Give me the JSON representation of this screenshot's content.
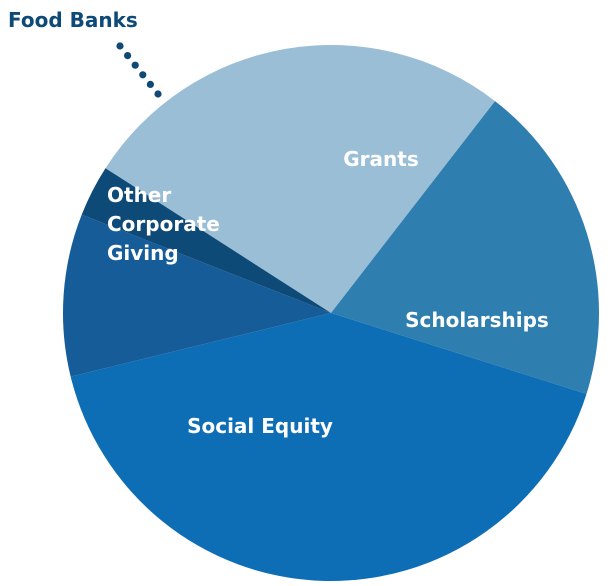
{
  "chart_data": {
    "type": "pie",
    "title": "",
    "categories": [
      "Grants",
      "Scholarships",
      "Social Equity",
      "Other Corporate Giving",
      "Food Banks"
    ],
    "values": [
      26.4,
      19.4,
      41.3,
      9.8,
      3.1
    ],
    "unit": "%",
    "colors": [
      "#9ABED6",
      "#2E7EB0",
      "#0D6DB5",
      "#155C98",
      "#0E4A77"
    ],
    "labels": [
      {
        "lines": [
          "Grants"
        ]
      },
      {
        "lines": [
          "Scholarships"
        ]
      },
      {
        "lines": [
          "Social Equity"
        ]
      },
      {
        "lines": [
          "Other",
          "Corporate",
          "Giving"
        ]
      },
      {
        "lines": [
          "Food Banks"
        ],
        "callout": true
      }
    ],
    "label_color": "#ffffff",
    "callout_color": "#0E4A77",
    "legend": "none"
  }
}
